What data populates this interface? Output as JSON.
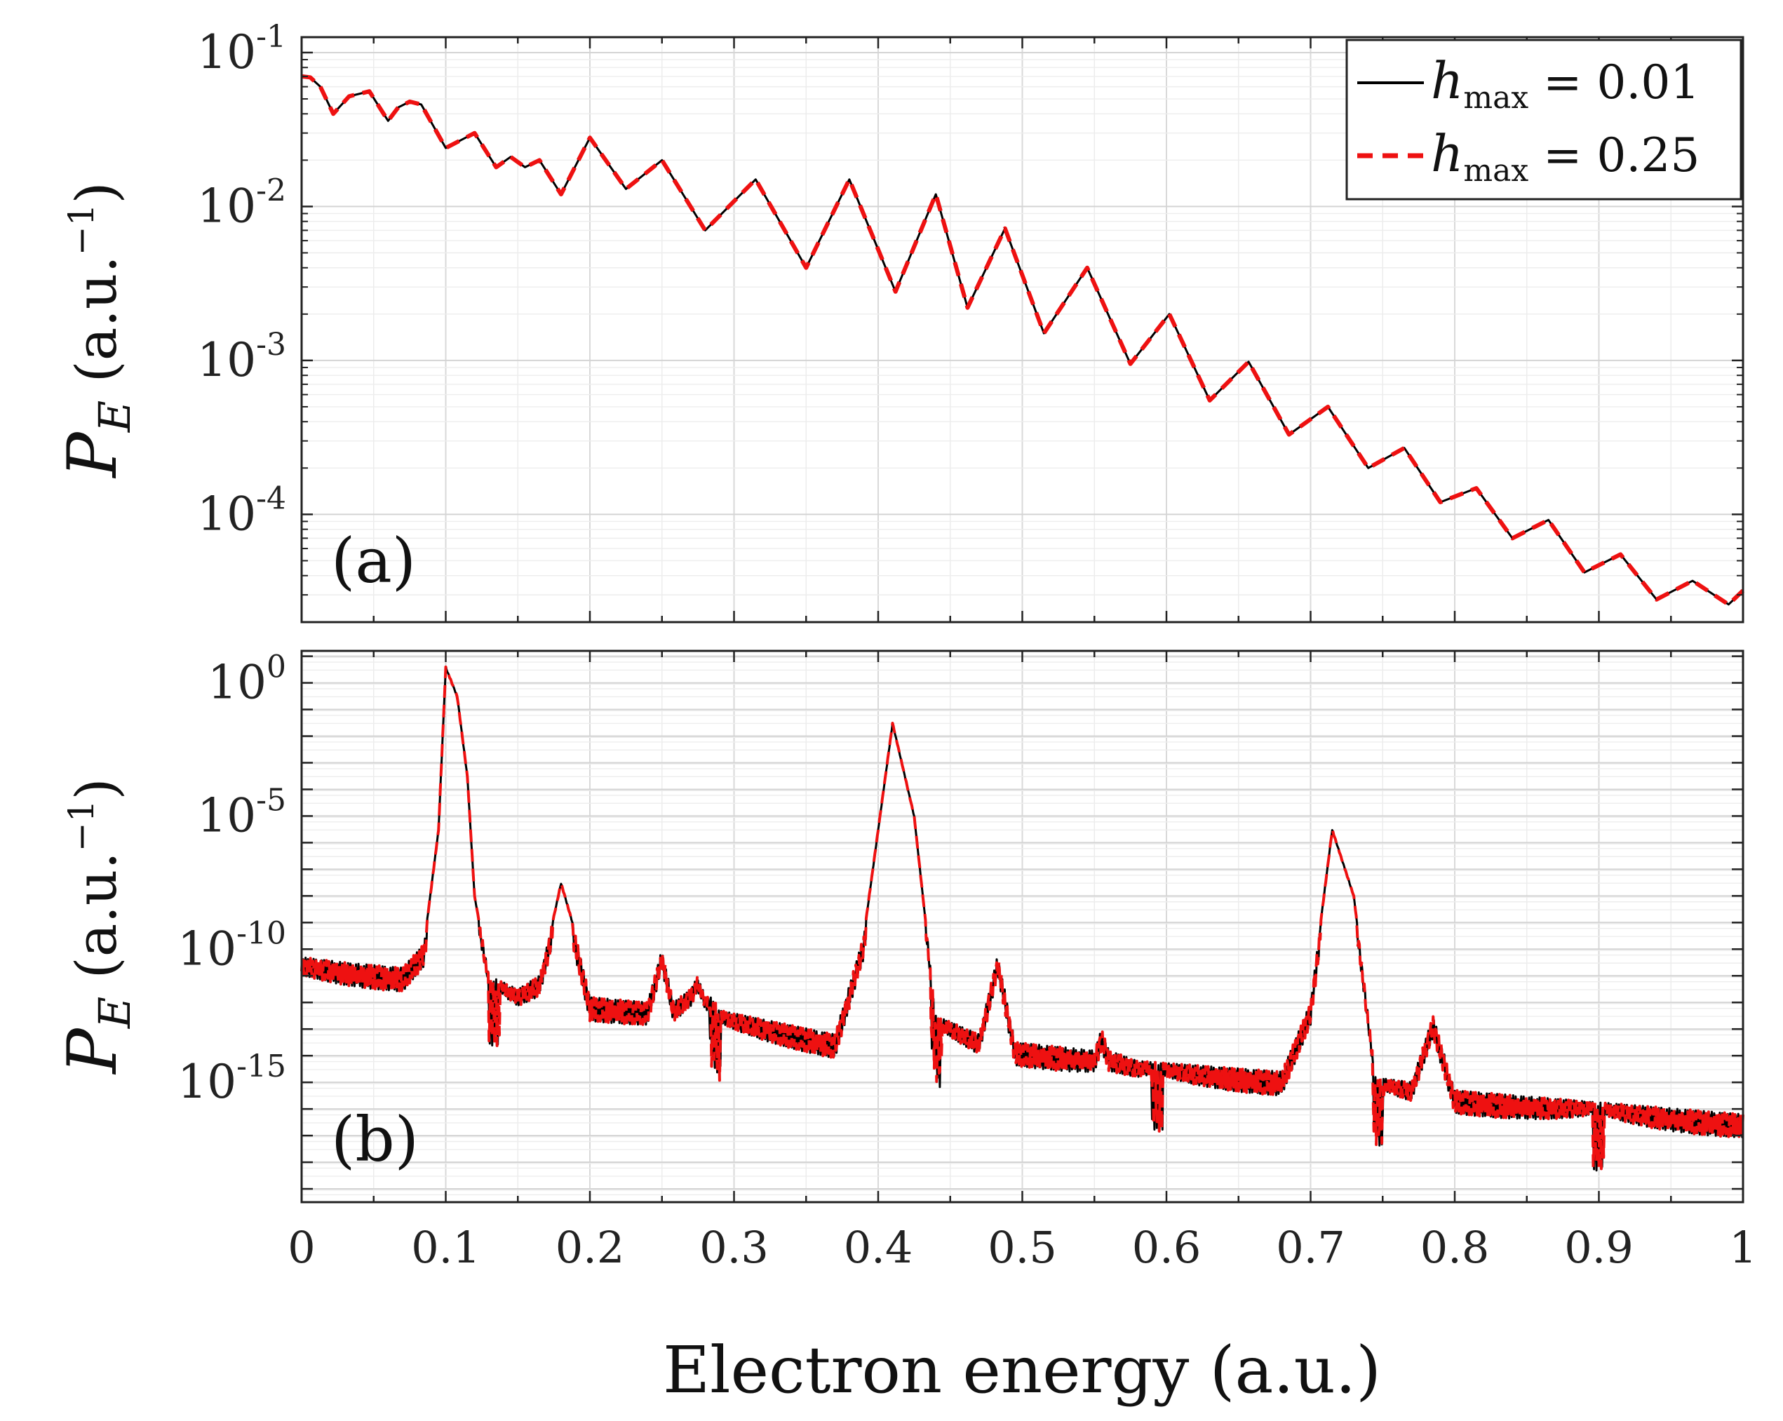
{
  "figure": {
    "xlabel": "Electron energy (a.u.)",
    "x_tick_labels": [
      "0",
      "0.1",
      "0.2",
      "0.3",
      "0.4",
      "0.5",
      "0.6",
      "0.7",
      "0.8",
      "0.9",
      "1"
    ]
  },
  "chart_data": [
    {
      "type": "line",
      "panel_label": "(a)",
      "ylabel_main": "P",
      "ylabel_sub": "E",
      "ylabel_unit": " (a.u.",
      "ylabel_exp": "−1",
      "ylabel_close": ")",
      "yscale": "log",
      "xlim": [
        0,
        1
      ],
      "ylim_log10": [
        -4.7,
        -0.9
      ],
      "y_ticks": [
        {
          "base": "10",
          "exp": "-1",
          "value": 0.1
        },
        {
          "base": "10",
          "exp": "-2",
          "value": 0.01
        },
        {
          "base": "10",
          "exp": "-3",
          "value": 0.001
        },
        {
          "base": "10",
          "exp": "-4",
          "value": 0.0001
        }
      ],
      "grid": true,
      "legend": {
        "position": "top-right",
        "entries": [
          {
            "symbol": "h",
            "sub": "max",
            "text": " = 0.01",
            "style": "solid",
            "color": "#000000"
          },
          {
            "symbol": "h",
            "sub": "max",
            "text": " = 0.25",
            "style": "dashed",
            "color": "#ee1111"
          }
        ]
      },
      "series": [
        {
          "name": "h_max = 0.01",
          "color": "#000000",
          "x": [
            0,
            0.006,
            0.013,
            0.022,
            0.033,
            0.047,
            0.06,
            0.067,
            0.075,
            0.083,
            0.1,
            0.12,
            0.135,
            0.145,
            0.155,
            0.165,
            0.18,
            0.2,
            0.225,
            0.25,
            0.28,
            0.315,
            0.35,
            0.38,
            0.412,
            0.44,
            0.462,
            0.488,
            0.515,
            0.545,
            0.575,
            0.602,
            0.63,
            0.657,
            0.685,
            0.712,
            0.74,
            0.765,
            0.79,
            0.815,
            0.84,
            0.865,
            0.89,
            0.915,
            0.94,
            0.965,
            0.99,
            1.0
          ],
          "values": [
            0.07,
            0.069,
            0.06,
            0.04,
            0.052,
            0.056,
            0.036,
            0.044,
            0.048,
            0.046,
            0.024,
            0.03,
            0.018,
            0.021,
            0.018,
            0.02,
            0.012,
            0.028,
            0.013,
            0.02,
            0.007,
            0.015,
            0.004,
            0.015,
            0.0028,
            0.012,
            0.0022,
            0.0072,
            0.0015,
            0.004,
            0.00095,
            0.002,
            0.00055,
            0.00098,
            0.00033,
            0.0005,
            0.0002,
            0.00027,
            0.00012,
            0.000148,
            7e-05,
            9.2e-05,
            4.2e-05,
            5.5e-05,
            2.8e-05,
            3.7e-05,
            2.6e-05,
            3.2e-05
          ]
        },
        {
          "name": "h_max = 0.25",
          "color": "#ee1111",
          "x": [
            0,
            0.006,
            0.013,
            0.022,
            0.033,
            0.047,
            0.06,
            0.067,
            0.075,
            0.083,
            0.1,
            0.12,
            0.135,
            0.145,
            0.155,
            0.165,
            0.18,
            0.2,
            0.225,
            0.25,
            0.28,
            0.315,
            0.35,
            0.38,
            0.412,
            0.44,
            0.462,
            0.488,
            0.515,
            0.545,
            0.575,
            0.602,
            0.63,
            0.657,
            0.685,
            0.712,
            0.74,
            0.765,
            0.79,
            0.815,
            0.84,
            0.865,
            0.89,
            0.915,
            0.94,
            0.965,
            0.99,
            1.0
          ],
          "values": [
            0.07,
            0.069,
            0.06,
            0.04,
            0.052,
            0.056,
            0.036,
            0.044,
            0.048,
            0.046,
            0.024,
            0.03,
            0.018,
            0.021,
            0.018,
            0.02,
            0.012,
            0.028,
            0.013,
            0.02,
            0.007,
            0.015,
            0.004,
            0.015,
            0.0028,
            0.012,
            0.0022,
            0.0072,
            0.0015,
            0.004,
            0.00095,
            0.002,
            0.00055,
            0.00098,
            0.00033,
            0.0005,
            0.0002,
            0.00027,
            0.00012,
            0.000148,
            7e-05,
            9.2e-05,
            4.2e-05,
            5.5e-05,
            2.8e-05,
            3.7e-05,
            2.6e-05,
            3.2e-05
          ]
        }
      ]
    },
    {
      "type": "line",
      "panel_label": "(b)",
      "ylabel_main": "P",
      "ylabel_sub": "E",
      "ylabel_unit": " (a.u.",
      "ylabel_exp": "−1",
      "ylabel_close": ")",
      "yscale": "log",
      "xlim": [
        0,
        1
      ],
      "ylim_log10": [
        -19.5,
        1.2
      ],
      "y_ticks": [
        {
          "base": "10",
          "exp": "0",
          "value": 1
        },
        {
          "base": "10",
          "exp": "-5",
          "value": 1e-05
        },
        {
          "base": "10",
          "exp": "-10",
          "value": 1e-10
        },
        {
          "base": "10",
          "exp": "-15",
          "value": 1e-15
        }
      ],
      "grid": true,
      "series": [
        {
          "name": "h_max = 0.01 (upper envelope, log10)",
          "color": "#000000",
          "x": [
            0,
            0.03,
            0.07,
            0.085,
            0.095,
            0.1,
            0.108,
            0.115,
            0.12,
            0.13,
            0.15,
            0.165,
            0.172,
            0.18,
            0.188,
            0.2,
            0.24,
            0.25,
            0.258,
            0.27,
            0.275,
            0.28,
            0.285,
            0.29,
            0.37,
            0.39,
            0.41,
            0.425,
            0.44,
            0.47,
            0.483,
            0.495,
            0.55,
            0.555,
            0.56,
            0.58,
            0.68,
            0.7,
            0.715,
            0.73,
            0.745,
            0.77,
            0.785,
            0.8,
            1.0
          ],
          "values": [
            -10.3,
            -10.5,
            -10.7,
            -9.8,
            -5.5,
            0.6,
            -0.5,
            -3.5,
            -8.0,
            -11.0,
            -11.5,
            -11.0,
            -9.5,
            -7.5,
            -9.0,
            -11.8,
            -12.0,
            -10.0,
            -12.0,
            -11.5,
            -11.0,
            -11.8,
            -11.8,
            -12.3,
            -13.2,
            -9.5,
            -1.5,
            -5.0,
            -12.5,
            -13.2,
            -10.2,
            -13.5,
            -13.8,
            -13.0,
            -13.8,
            -14.2,
            -14.6,
            -12.0,
            -5.5,
            -8.0,
            -14.8,
            -15.0,
            -12.5,
            -15.3,
            -16.2
          ]
        },
        {
          "name": "h_max = 0.25 (upper envelope, log10)",
          "color": "#ee1111",
          "x": [
            0,
            0.03,
            0.07,
            0.085,
            0.095,
            0.1,
            0.108,
            0.115,
            0.12,
            0.13,
            0.15,
            0.165,
            0.172,
            0.18,
            0.188,
            0.2,
            0.24,
            0.25,
            0.258,
            0.27,
            0.275,
            0.28,
            0.285,
            0.29,
            0.37,
            0.39,
            0.41,
            0.425,
            0.44,
            0.47,
            0.483,
            0.495,
            0.55,
            0.555,
            0.56,
            0.58,
            0.68,
            0.7,
            0.715,
            0.73,
            0.745,
            0.77,
            0.785,
            0.8,
            1.0
          ],
          "values": [
            -10.3,
            -10.5,
            -10.7,
            -9.8,
            -5.5,
            0.6,
            -0.5,
            -3.5,
            -8.0,
            -11.0,
            -11.5,
            -11.0,
            -9.5,
            -7.5,
            -9.0,
            -11.8,
            -12.0,
            -10.0,
            -12.0,
            -11.5,
            -11.0,
            -11.8,
            -11.8,
            -12.3,
            -13.2,
            -9.5,
            -1.5,
            -5.0,
            -12.5,
            -13.2,
            -10.2,
            -13.5,
            -13.8,
            -13.0,
            -13.8,
            -14.2,
            -14.6,
            -12.0,
            -5.5,
            -8.0,
            -14.8,
            -15.0,
            -12.5,
            -15.3,
            -16.2
          ]
        }
      ]
    }
  ]
}
